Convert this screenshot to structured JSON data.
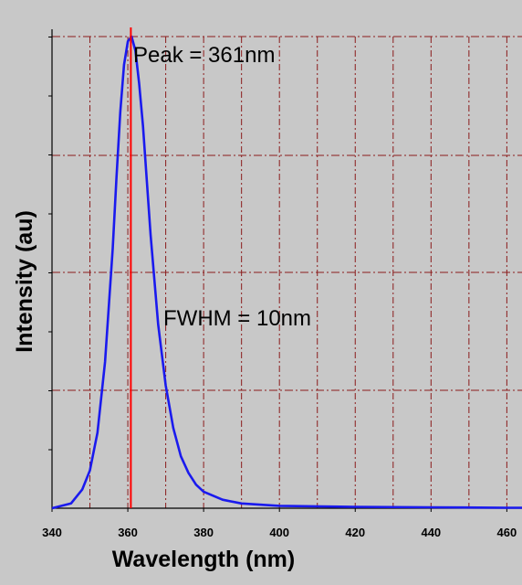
{
  "chart_data": {
    "type": "line",
    "title": "",
    "xlabel": "Wavelength (nm)",
    "ylabel": "Intensity (au)",
    "xlim": [
      340,
      464
    ],
    "ylim": [
      0,
      1.0
    ],
    "grid": true,
    "x_ticks": [
      340,
      360,
      380,
      400,
      420,
      440,
      460
    ],
    "annotations": {
      "peak_label": "Peak = 361nm",
      "fwhm_label": "FWHM = 10nm"
    },
    "peak_marker_x": 360.8,
    "colors": {
      "background": "#c8c8c8",
      "curve": "#1a1aee",
      "marker": "#ff0000",
      "grid": "#8b1c1c",
      "text": "#000000"
    },
    "series": [
      {
        "x": [
          340,
          345,
          348,
          350,
          352,
          354,
          356,
          357,
          358,
          359,
          360,
          361,
          362,
          363,
          364,
          366,
          368,
          370,
          372,
          374,
          376,
          378,
          380,
          385,
          390,
          400,
          420,
          440,
          460,
          464
        ],
        "y": [
          0.0,
          0.01,
          0.04,
          0.08,
          0.16,
          0.31,
          0.55,
          0.7,
          0.84,
          0.94,
          0.99,
          1.0,
          0.97,
          0.9,
          0.81,
          0.58,
          0.39,
          0.26,
          0.17,
          0.11,
          0.075,
          0.05,
          0.035,
          0.018,
          0.01,
          0.005,
          0.003,
          0.002,
          0.001,
          0.001
        ]
      }
    ]
  }
}
